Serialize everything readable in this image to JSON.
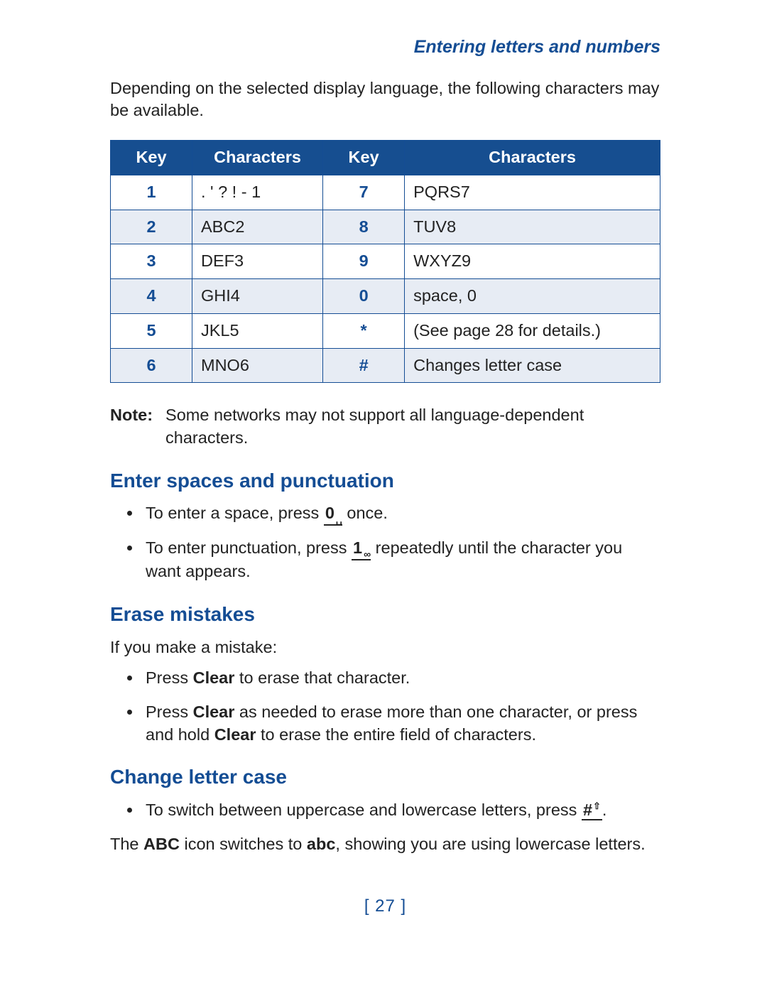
{
  "header": {
    "chapter_title": "Entering letters and numbers"
  },
  "intro_text": "Depending on the selected display language, the following characters may be available.",
  "table": {
    "headers": {
      "key": "Key",
      "chars": "Characters"
    },
    "rows": [
      {
        "k1": "1",
        "c1": ". ' ? ! - 1",
        "k2": "7",
        "c2": "PQRS7",
        "alt": false
      },
      {
        "k1": "2",
        "c1": "ABC2",
        "k2": "8",
        "c2": "TUV8",
        "alt": true
      },
      {
        "k1": "3",
        "c1": "DEF3",
        "k2": "9",
        "c2": "WXYZ9",
        "alt": false
      },
      {
        "k1": "4",
        "c1": "GHI4",
        "k2": "0",
        "c2": "space, 0",
        "alt": true
      },
      {
        "k1": "5",
        "c1": "JKL5",
        "k2": "*",
        "c2": "(See page 28 for details.)",
        "alt": false
      },
      {
        "k1": "6",
        "c1": "MNO6",
        "k2": "#",
        "c2": "Changes letter case",
        "alt": true
      }
    ]
  },
  "note": {
    "label": "Note:",
    "body": "Some networks may not support all language-dependent characters."
  },
  "sections": {
    "spaces": {
      "heading": "Enter spaces and punctuation",
      "bullet1_pre": "To enter a space, press ",
      "bullet1_key_main": "0",
      "bullet1_key_sub": "␣",
      "bullet1_post": " once.",
      "bullet2_pre": "To enter punctuation, press ",
      "bullet2_key_main": "1",
      "bullet2_key_sub": "∞",
      "bullet2_post": " repeatedly until the character you want appears."
    },
    "erase": {
      "heading": "Erase mistakes",
      "intro": "If you make a mistake:",
      "bullet1_pre": "Press ",
      "bullet1_bold": "Clear",
      "bullet1_post": " to erase that character.",
      "bullet2_pre": "Press ",
      "bullet2_bold1": "Clear",
      "bullet2_mid": " as needed to erase more than one character, or press and hold ",
      "bullet2_bold2": "Clear",
      "bullet2_post": " to erase the entire field of characters."
    },
    "case": {
      "heading": "Change letter case",
      "bullet1_pre": "To switch between uppercase and lowercase letters, press ",
      "bullet1_key_main": "#",
      "bullet1_key_sub": "⇧",
      "bullet1_post": ".",
      "final_pre": "The ",
      "final_b1": "ABC",
      "final_mid": " icon switches to ",
      "final_b2": "abc",
      "final_post": ", showing you are using lowercase letters."
    }
  },
  "page_number": "[ 27 ]"
}
